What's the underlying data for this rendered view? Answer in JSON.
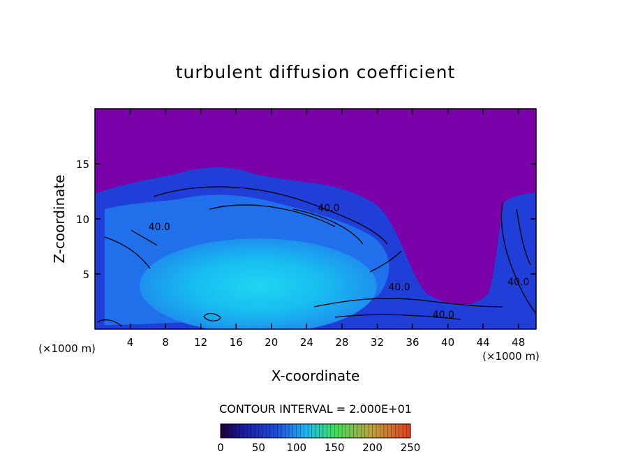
{
  "chart_data": {
    "type": "heatmap",
    "title": "turbulent diffusion coefficient",
    "xlabel": "X-coordinate",
    "ylabel": "Z-coordinate",
    "x_unit": "(×1000 m)",
    "z_unit": "(×1000 m)",
    "xlim": [
      0,
      50
    ],
    "ylim": [
      0,
      20
    ],
    "x_ticks": [
      4,
      8,
      12,
      16,
      20,
      24,
      28,
      32,
      36,
      40,
      44,
      48
    ],
    "y_ticks": [
      5,
      10,
      15
    ],
    "contour_interval_text": "CONTOUR INTERVAL = 2.000E+01",
    "contour_labels": [
      {
        "text": "40.0",
        "x": 7.3,
        "z": 9.0
      },
      {
        "text": "40.0",
        "x": 26.5,
        "z": 10.7
      },
      {
        "text": "40.0",
        "x": 34.5,
        "z": 3.5
      },
      {
        "text": "40.0",
        "x": 39.5,
        "z": 1.0
      },
      {
        "text": "40.0",
        "x": 48.0,
        "z": 4.0
      }
    ],
    "colorbar": {
      "min": 0,
      "max": 250,
      "ticks": [
        0,
        50,
        100,
        150,
        200,
        250
      ],
      "colors": [
        "#1a0033",
        "#1a1aa0",
        "#1f4fe0",
        "#1fb8f0",
        "#40e060",
        "#c0a040",
        "#e04020"
      ]
    },
    "background_color": "#7a00aa"
  }
}
